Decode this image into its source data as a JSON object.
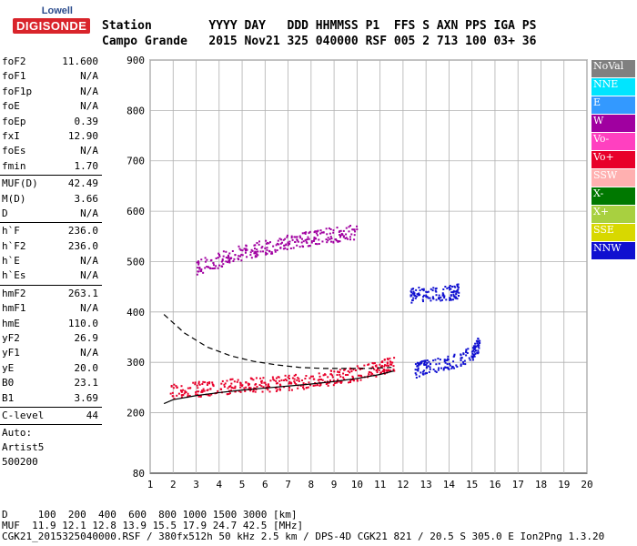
{
  "logo": {
    "line1": "Lowell",
    "line2": "DIGISONDE"
  },
  "header": {
    "row1": "Station        YYYY DAY   DDD HHMMSS P1  FFS S AXN PPS IGA PS",
    "row2": "Campo Grande   2015 Nov21 325 040000 RSF 005 2 713 100 03+ 36"
  },
  "params": [
    [
      {
        "k": "foF2",
        "v": "11.600"
      },
      {
        "k": "foF1",
        "v": "N/A"
      },
      {
        "k": "foF1p",
        "v": "N/A"
      },
      {
        "k": "foE",
        "v": "N/A"
      },
      {
        "k": "foEp",
        "v": "0.39"
      },
      {
        "k": "fxI",
        "v": "12.90"
      },
      {
        "k": "foEs",
        "v": "N/A"
      },
      {
        "k": "fmin",
        "v": "1.70"
      }
    ],
    [
      {
        "k": "MUF(D)",
        "v": "42.49"
      },
      {
        "k": "M(D)",
        "v": "3.66"
      },
      {
        "k": "D",
        "v": "N/A"
      }
    ],
    [
      {
        "k": "h`F",
        "v": "236.0"
      },
      {
        "k": "h`F2",
        "v": "236.0"
      },
      {
        "k": "h`E",
        "v": "N/A"
      },
      {
        "k": "h`Es",
        "v": "N/A"
      }
    ],
    [
      {
        "k": "hmF2",
        "v": "263.1"
      },
      {
        "k": "hmF1",
        "v": "N/A"
      },
      {
        "k": "hmE",
        "v": "110.0"
      },
      {
        "k": "yF2",
        "v": "26.9"
      },
      {
        "k": "yF1",
        "v": "N/A"
      },
      {
        "k": "yE",
        "v": "20.0"
      },
      {
        "k": "B0",
        "v": "23.1"
      },
      {
        "k": "B1",
        "v": "3.69"
      }
    ],
    [
      {
        "k": "C-level",
        "v": "44"
      }
    ]
  ],
  "auto": {
    "l1": "Auto:",
    "l2": "Artist5",
    "l3": "500200"
  },
  "legend": [
    {
      "label": "NoVal",
      "color": "#808080"
    },
    {
      "label": "NNE",
      "color": "#00e5ff"
    },
    {
      "label": "E",
      "color": "#3399ff"
    },
    {
      "label": "W",
      "color": "#a000a0"
    },
    {
      "label": "Vo-",
      "color": "#ff40c0"
    },
    {
      "label": "Vo+",
      "color": "#e8002a"
    },
    {
      "label": "SSW",
      "color": "#ffb0b0"
    },
    {
      "label": "X-",
      "color": "#007800"
    },
    {
      "label": "X+",
      "color": "#a8d040"
    },
    {
      "label": "SSE",
      "color": "#d8d800"
    },
    {
      "label": "NNW",
      "color": "#1010d0"
    }
  ],
  "footer": {
    "l1": "D     100  200  400  600  800 1000 1500 3000 [km]",
    "l2": "MUF  11.9 12.1 12.8 13.9 15.5 17.9 24.7 42.5 [MHz]",
    "l3": "CGK21_2015325040000.RSF / 380fx512h 50 kHz 2.5 km / DPS-4D CGK21 821 / 20.5 S 305.0 E Ion2Png 1.3.20"
  },
  "chart_data": {
    "type": "scatter",
    "xlabel": "",
    "ylabel": "",
    "xlim": [
      1,
      20
    ],
    "ylim": [
      80,
      900
    ],
    "xticks": [
      1,
      2,
      3,
      4,
      5,
      6,
      7,
      8,
      9,
      10,
      11,
      12,
      13,
      14,
      15,
      16,
      17,
      18,
      19,
      20
    ],
    "yticks": [
      80,
      200,
      300,
      400,
      500,
      600,
      700,
      800,
      900
    ],
    "grid": true,
    "series": [
      {
        "name": "profile",
        "values": [
          [
            1.6,
            218
          ],
          [
            2,
            226
          ],
          [
            3,
            234
          ],
          [
            4,
            240
          ],
          [
            5,
            245
          ],
          [
            6,
            249
          ],
          [
            7,
            253
          ],
          [
            8,
            257
          ],
          [
            9,
            262
          ],
          [
            10,
            268
          ],
          [
            11,
            276
          ],
          [
            11.6,
            283
          ]
        ]
      },
      {
        "name": "trace",
        "values": [
          [
            1.6,
            395
          ],
          [
            2.5,
            358
          ],
          [
            3.5,
            330
          ],
          [
            4.5,
            313
          ],
          [
            5.5,
            302
          ],
          [
            6.5,
            295
          ],
          [
            7.5,
            290
          ],
          [
            8.5,
            288
          ],
          [
            9.5,
            288
          ],
          [
            10.5,
            288
          ],
          [
            11.5,
            290
          ]
        ]
      }
    ],
    "echoes": [
      {
        "name": "o-trace",
        "color": "#e8002a",
        "values": [
          [
            1.8,
            242
          ],
          [
            3,
            248
          ],
          [
            4,
            252
          ],
          [
            5,
            255
          ],
          [
            6,
            258
          ],
          [
            7,
            261
          ],
          [
            8,
            265
          ],
          [
            9,
            272
          ],
          [
            10,
            280
          ],
          [
            11,
            290
          ],
          [
            11.6,
            300
          ]
        ]
      },
      {
        "name": "x-trace",
        "color": "#1010d0",
        "values": [
          [
            12.5,
            285
          ],
          [
            13,
            295
          ],
          [
            14,
            300
          ],
          [
            15,
            320
          ],
          [
            15.3,
            340
          ]
        ]
      },
      {
        "name": "multi-hop",
        "color": "#a000a0",
        "values": [
          [
            3,
            490
          ],
          [
            4,
            505
          ],
          [
            5,
            520
          ],
          [
            6,
            530
          ],
          [
            7,
            540
          ],
          [
            8,
            548
          ],
          [
            9,
            555
          ],
          [
            10,
            560
          ]
        ]
      },
      {
        "name": "spread",
        "color": "#1010d0",
        "values": [
          [
            12.3,
            435
          ],
          [
            13,
            438
          ],
          [
            14,
            440
          ],
          [
            14.4,
            442
          ]
        ]
      }
    ]
  }
}
